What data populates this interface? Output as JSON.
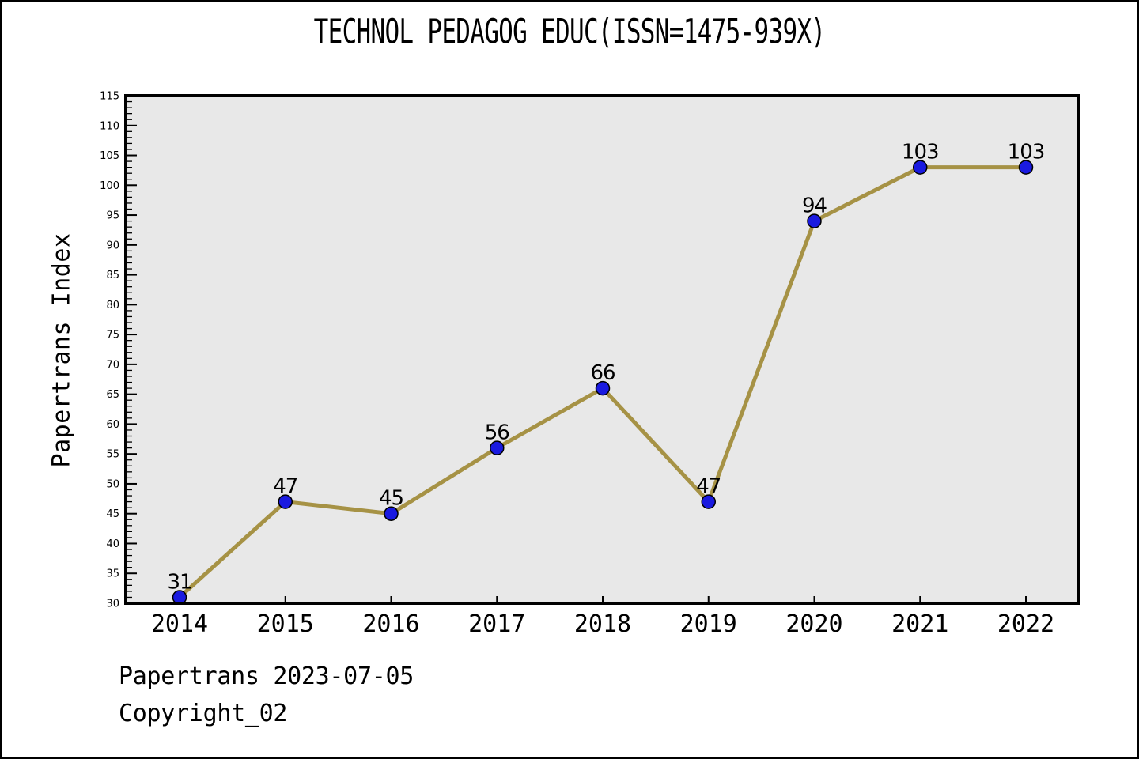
{
  "chart_data": {
    "type": "line",
    "title": "TECHNOL PEDAGOG EDUC(ISSN=1475-939X)",
    "ylabel": "Papertrans Index",
    "xlabel": "",
    "categories": [
      "2014",
      "2015",
      "2016",
      "2017",
      "2018",
      "2019",
      "2020",
      "2021",
      "2022"
    ],
    "series": [
      {
        "name": "Papertrans Index",
        "values": [
          31,
          47,
          45,
          56,
          66,
          47,
          94,
          103,
          103
        ]
      }
    ],
    "point_labels": [
      "31",
      "47",
      "45",
      "56",
      "66",
      "47",
      "94",
      "103",
      "103"
    ],
    "ylim": [
      30,
      115
    ],
    "y_major_step": 5,
    "y_minor_step": 1,
    "grid": false,
    "legend_position": "none",
    "colors": {
      "line": "#a69245",
      "marker_fill": "#1a1ae0",
      "marker_edge": "#000000",
      "plot_background": "#e8e8e8",
      "axis": "#000000",
      "text": "#000000"
    }
  },
  "footer": {
    "line1": "Papertrans 2023-07-05",
    "line2": "Copyright_02"
  }
}
